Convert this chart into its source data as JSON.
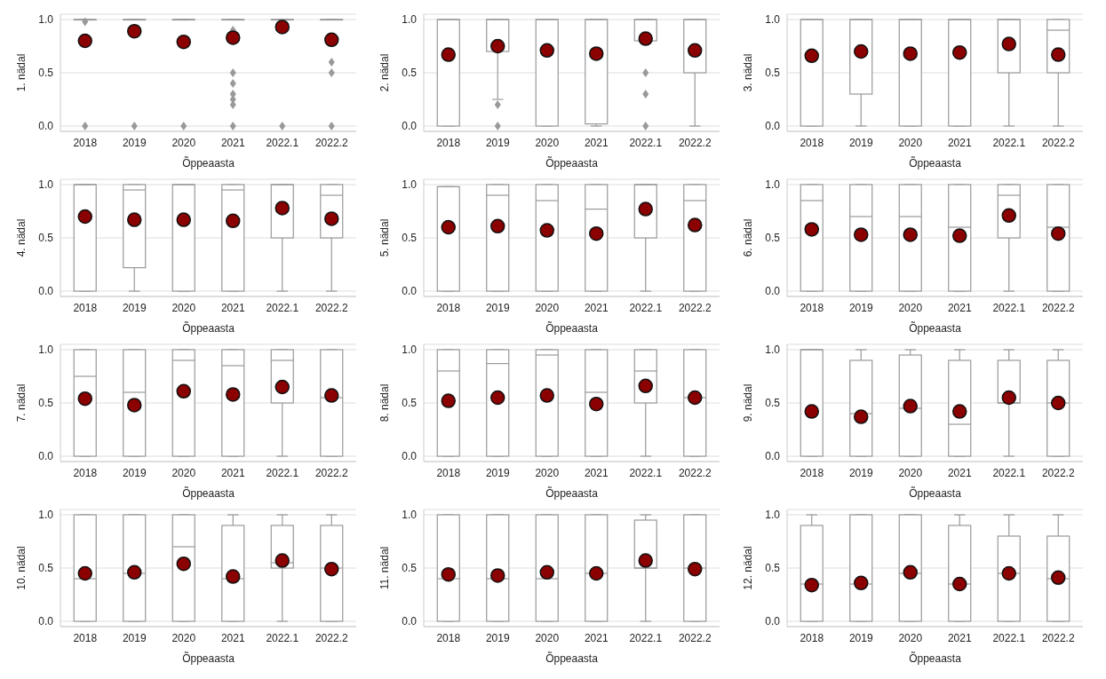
{
  "chart_data": [
    {
      "type": "box",
      "ylabel": "1. nädal",
      "xlabel": "Õppeaasta",
      "categories": [
        "2018",
        "2019",
        "2020",
        "2021",
        "2022.1",
        "2022.2"
      ],
      "ylim": [
        -0.05,
        1.05
      ],
      "yticks": [
        {
          "value": 0,
          "label": "0.0"
        },
        {
          "value": 0.5,
          "label": "0.5"
        },
        {
          "value": 1,
          "label": "1.0"
        }
      ],
      "grid": "y",
      "boxes": [
        {
          "low": 1,
          "q1": 1,
          "median": 1,
          "q3": 1,
          "high": 1,
          "mean": 0.8,
          "outliers": [
            0,
            0.98
          ]
        },
        {
          "low": 1,
          "q1": 1,
          "median": 1,
          "q3": 1,
          "high": 1,
          "mean": 0.89,
          "outliers": [
            0
          ]
        },
        {
          "low": 1,
          "q1": 1,
          "median": 1,
          "q3": 1,
          "high": 1,
          "mean": 0.79,
          "outliers": [
            0
          ]
        },
        {
          "low": 1,
          "q1": 1,
          "median": 1,
          "q3": 1,
          "high": 1,
          "mean": 0.83,
          "outliers": [
            0,
            0.2,
            0.25,
            0.3,
            0.4,
            0.5,
            0.8,
            0.9
          ]
        },
        {
          "low": 1,
          "q1": 1,
          "median": 1,
          "q3": 1,
          "high": 1,
          "mean": 0.93,
          "outliers": [
            0
          ]
        },
        {
          "low": 1,
          "q1": 1,
          "median": 1,
          "q3": 1,
          "high": 1,
          "mean": 0.81,
          "outliers": [
            0,
            0.5,
            0.6
          ]
        }
      ]
    },
    {
      "type": "box",
      "ylabel": "2. nädal",
      "xlabel": "Õppeaasta",
      "categories": [
        "2018",
        "2019",
        "2020",
        "2021",
        "2022.1",
        "2022.2"
      ],
      "ylim": [
        -0.05,
        1.05
      ],
      "yticks": [
        {
          "value": 0,
          "label": "0.0"
        },
        {
          "value": 0.5,
          "label": "0.5"
        },
        {
          "value": 1,
          "label": "1.0"
        }
      ],
      "grid": "y",
      "boxes": [
        {
          "low": 0,
          "q1": 0,
          "median": 1,
          "q3": 1,
          "high": 1,
          "mean": 0.67
        },
        {
          "low": 0.25,
          "q1": 0.7,
          "median": 1,
          "q3": 1,
          "high": 1,
          "mean": 0.75,
          "outliers": [
            0,
            0.2
          ]
        },
        {
          "low": 0,
          "q1": 0,
          "median": 1,
          "q3": 1,
          "high": 1,
          "mean": 0.71
        },
        {
          "low": 0,
          "q1": 0.02,
          "median": 1,
          "q3": 1,
          "high": 1,
          "mean": 0.68
        },
        {
          "low": 0.8,
          "q1": 0.8,
          "median": 1,
          "q3": 1,
          "high": 1,
          "mean": 0.82,
          "outliers": [
            0,
            0.3,
            0.5
          ]
        },
        {
          "low": 0,
          "q1": 0.5,
          "median": 1,
          "q3": 1,
          "high": 1,
          "mean": 0.71
        }
      ]
    },
    {
      "type": "box",
      "ylabel": "3. nädal",
      "xlabel": "Õppeaasta",
      "categories": [
        "2018",
        "2019",
        "2020",
        "2021",
        "2022.1",
        "2022.2"
      ],
      "ylim": [
        -0.05,
        1.05
      ],
      "yticks": [
        {
          "value": 0,
          "label": "0.0"
        },
        {
          "value": 0.5,
          "label": "0.5"
        },
        {
          "value": 1,
          "label": "1.0"
        }
      ],
      "grid": "y",
      "boxes": [
        {
          "low": 0,
          "q1": 0,
          "median": 1,
          "q3": 1,
          "high": 1,
          "mean": 0.66
        },
        {
          "low": 0,
          "q1": 0.3,
          "median": 1,
          "q3": 1,
          "high": 1,
          "mean": 0.7
        },
        {
          "low": 0,
          "q1": 0,
          "median": 1,
          "q3": 1,
          "high": 1,
          "mean": 0.68
        },
        {
          "low": 0,
          "q1": 0,
          "median": 1,
          "q3": 1,
          "high": 1,
          "mean": 0.69
        },
        {
          "low": 0,
          "q1": 0.5,
          "median": 1,
          "q3": 1,
          "high": 1,
          "mean": 0.77
        },
        {
          "low": 0,
          "q1": 0.5,
          "median": 0.9,
          "q3": 1,
          "high": 1,
          "mean": 0.67
        }
      ]
    },
    {
      "type": "box",
      "ylabel": "4. nädal",
      "xlabel": "Õppeaasta",
      "categories": [
        "2018",
        "2019",
        "2020",
        "2021",
        "2022.1",
        "2022.2"
      ],
      "ylim": [
        -0.05,
        1.05
      ],
      "yticks": [
        {
          "value": 0,
          "label": "0.0"
        },
        {
          "value": 0.5,
          "label": "0.5"
        },
        {
          "value": 1,
          "label": "1.0"
        }
      ],
      "grid": "y",
      "boxes": [
        {
          "low": 0,
          "q1": 0,
          "median": 1,
          "q3": 1,
          "high": 1,
          "mean": 0.7
        },
        {
          "low": 0,
          "q1": 0.22,
          "median": 0.95,
          "q3": 1,
          "high": 1,
          "mean": 0.67
        },
        {
          "low": 0,
          "q1": 0,
          "median": 1,
          "q3": 1,
          "high": 1,
          "mean": 0.67
        },
        {
          "low": 0,
          "q1": 0,
          "median": 0.95,
          "q3": 1,
          "high": 1,
          "mean": 0.66
        },
        {
          "low": 0,
          "q1": 0.5,
          "median": 1,
          "q3": 1,
          "high": 1,
          "mean": 0.78
        },
        {
          "low": 0,
          "q1": 0.5,
          "median": 0.9,
          "q3": 1,
          "high": 1,
          "mean": 0.68
        }
      ]
    },
    {
      "type": "box",
      "ylabel": "5. nädal",
      "xlabel": "Õppeaasta",
      "categories": [
        "2018",
        "2019",
        "2020",
        "2021",
        "2022.1",
        "2022.2"
      ],
      "ylim": [
        -0.05,
        1.05
      ],
      "yticks": [
        {
          "value": 0,
          "label": "0.0"
        },
        {
          "value": 0.5,
          "label": "0.5"
        },
        {
          "value": 1,
          "label": "1.0"
        }
      ],
      "grid": "y",
      "boxes": [
        {
          "low": 0,
          "q1": 0,
          "median": 0.98,
          "q3": 0.98,
          "high": 0.98,
          "mean": 0.6
        },
        {
          "low": 0,
          "q1": 0,
          "median": 0.9,
          "q3": 1,
          "high": 1,
          "mean": 0.61
        },
        {
          "low": 0,
          "q1": 0,
          "median": 0.85,
          "q3": 1,
          "high": 1,
          "mean": 0.57
        },
        {
          "low": 0,
          "q1": 0,
          "median": 0.77,
          "q3": 1,
          "high": 1,
          "mean": 0.54
        },
        {
          "low": 0,
          "q1": 0.5,
          "median": 1,
          "q3": 1,
          "high": 1,
          "mean": 0.77
        },
        {
          "low": 0,
          "q1": 0,
          "median": 0.85,
          "q3": 1,
          "high": 1,
          "mean": 0.62
        }
      ]
    },
    {
      "type": "box",
      "ylabel": "6. nädal",
      "xlabel": "Õppeaasta",
      "categories": [
        "2018",
        "2019",
        "2020",
        "2021",
        "2022.1",
        "2022.2"
      ],
      "ylim": [
        -0.05,
        1.05
      ],
      "yticks": [
        {
          "value": 0,
          "label": "0.0"
        },
        {
          "value": 0.5,
          "label": "0.5"
        },
        {
          "value": 1,
          "label": "1.0"
        }
      ],
      "grid": "y",
      "boxes": [
        {
          "low": 0,
          "q1": 0,
          "median": 0.85,
          "q3": 1,
          "high": 1,
          "mean": 0.58
        },
        {
          "low": 0,
          "q1": 0,
          "median": 0.7,
          "q3": 1,
          "high": 1,
          "mean": 0.53
        },
        {
          "low": 0,
          "q1": 0,
          "median": 0.7,
          "q3": 1,
          "high": 1,
          "mean": 0.53
        },
        {
          "low": 0,
          "q1": 0,
          "median": 0.6,
          "q3": 1,
          "high": 1,
          "mean": 0.52
        },
        {
          "low": 0,
          "q1": 0.5,
          "median": 0.9,
          "q3": 1,
          "high": 1,
          "mean": 0.71
        },
        {
          "low": 0,
          "q1": 0,
          "median": 0.6,
          "q3": 1,
          "high": 1,
          "mean": 0.54
        }
      ]
    },
    {
      "type": "box",
      "ylabel": "7. nädal",
      "xlabel": "Õppeaasta",
      "categories": [
        "2018",
        "2019",
        "2020",
        "2021",
        "2022.1",
        "2022.2"
      ],
      "ylim": [
        -0.05,
        1.05
      ],
      "yticks": [
        {
          "value": 0,
          "label": "0.0"
        },
        {
          "value": 0.5,
          "label": "0.5"
        },
        {
          "value": 1,
          "label": "1.0"
        }
      ],
      "grid": "y",
      "boxes": [
        {
          "low": 0,
          "q1": 0,
          "median": 0.75,
          "q3": 1,
          "high": 1,
          "mean": 0.54
        },
        {
          "low": 0,
          "q1": 0,
          "median": 0.6,
          "q3": 1,
          "high": 1,
          "mean": 0.48
        },
        {
          "low": 0,
          "q1": 0,
          "median": 0.9,
          "q3": 1,
          "high": 1,
          "mean": 0.61
        },
        {
          "low": 0,
          "q1": 0,
          "median": 0.85,
          "q3": 1,
          "high": 1,
          "mean": 0.58
        },
        {
          "low": 0,
          "q1": 0.5,
          "median": 0.9,
          "q3": 1,
          "high": 1,
          "mean": 0.65
        },
        {
          "low": 0,
          "q1": 0,
          "median": 0.55,
          "q3": 1,
          "high": 1,
          "mean": 0.57
        }
      ]
    },
    {
      "type": "box",
      "ylabel": "8. nädal",
      "xlabel": "Õppeaasta",
      "categories": [
        "2018",
        "2019",
        "2020",
        "2021",
        "2022.1",
        "2022.2"
      ],
      "ylim": [
        -0.05,
        1.05
      ],
      "yticks": [
        {
          "value": 0,
          "label": "0.0"
        },
        {
          "value": 0.5,
          "label": "0.5"
        },
        {
          "value": 1,
          "label": "1.0"
        }
      ],
      "grid": "y",
      "boxes": [
        {
          "low": 0,
          "q1": 0,
          "median": 0.8,
          "q3": 1,
          "high": 1,
          "mean": 0.52
        },
        {
          "low": 0,
          "q1": 0,
          "median": 0.87,
          "q3": 1,
          "high": 1,
          "mean": 0.55
        },
        {
          "low": 0,
          "q1": 0,
          "median": 0.95,
          "q3": 1,
          "high": 1,
          "mean": 0.57
        },
        {
          "low": 0,
          "q1": 0,
          "median": 0.6,
          "q3": 1,
          "high": 1,
          "mean": 0.49
        },
        {
          "low": 0,
          "q1": 0.5,
          "median": 0.8,
          "q3": 1,
          "high": 1,
          "mean": 0.66
        },
        {
          "low": 0,
          "q1": 0,
          "median": 0.55,
          "q3": 1,
          "high": 1,
          "mean": 0.55
        }
      ]
    },
    {
      "type": "box",
      "ylabel": "9. nädal",
      "xlabel": "Õppeaasta",
      "categories": [
        "2018",
        "2019",
        "2020",
        "2021",
        "2022.1",
        "2022.2"
      ],
      "ylim": [
        -0.05,
        1.05
      ],
      "yticks": [
        {
          "value": 0,
          "label": "0.0"
        },
        {
          "value": 0.5,
          "label": "0.5"
        },
        {
          "value": 1,
          "label": "1.0"
        }
      ],
      "grid": "y",
      "boxes": [
        {
          "low": 0,
          "q1": 0,
          "median": 1,
          "q3": 1,
          "high": 1,
          "mean": 0.42
        },
        {
          "low": 0,
          "q1": 0,
          "median": 0.4,
          "q3": 0.9,
          "high": 1,
          "mean": 0.37
        },
        {
          "low": 0,
          "q1": 0,
          "median": 0.45,
          "q3": 0.95,
          "high": 1,
          "mean": 0.47
        },
        {
          "low": 0,
          "q1": 0,
          "median": 0.3,
          "q3": 0.9,
          "high": 1,
          "mean": 0.42
        },
        {
          "low": 0,
          "q1": 0.5,
          "median": 0.5,
          "q3": 0.9,
          "high": 1,
          "mean": 0.55
        },
        {
          "low": 0,
          "q1": 0,
          "median": 0.5,
          "q3": 0.9,
          "high": 1,
          "mean": 0.5
        }
      ]
    },
    {
      "type": "box",
      "ylabel": "10. nädal",
      "xlabel": "Õppeaasta",
      "categories": [
        "2018",
        "2019",
        "2020",
        "2021",
        "2022.1",
        "2022.2"
      ],
      "ylim": [
        -0.05,
        1.05
      ],
      "yticks": [
        {
          "value": 0,
          "label": "0.0"
        },
        {
          "value": 0.5,
          "label": "0.5"
        },
        {
          "value": 1,
          "label": "1.0"
        }
      ],
      "grid": "y",
      "boxes": [
        {
          "low": 0,
          "q1": 0,
          "median": 0.4,
          "q3": 1,
          "high": 1,
          "mean": 0.45
        },
        {
          "low": 0,
          "q1": 0,
          "median": 0.45,
          "q3": 1,
          "high": 1,
          "mean": 0.46
        },
        {
          "low": 0,
          "q1": 0,
          "median": 0.7,
          "q3": 1,
          "high": 1,
          "mean": 0.54
        },
        {
          "low": 0,
          "q1": 0,
          "median": 0.4,
          "q3": 0.9,
          "high": 1,
          "mean": 0.42
        },
        {
          "low": 0,
          "q1": 0.5,
          "median": 0.55,
          "q3": 0.9,
          "high": 1,
          "mean": 0.57
        },
        {
          "low": 0,
          "q1": 0,
          "median": 0.5,
          "q3": 0.9,
          "high": 1,
          "mean": 0.49
        }
      ]
    },
    {
      "type": "box",
      "ylabel": "11. nädal",
      "xlabel": "Õppeaasta",
      "categories": [
        "2018",
        "2019",
        "2020",
        "2021",
        "2022.1",
        "2022.2"
      ],
      "ylim": [
        -0.05,
        1.05
      ],
      "yticks": [
        {
          "value": 0,
          "label": "0.0"
        },
        {
          "value": 0.5,
          "label": "0.5"
        },
        {
          "value": 1,
          "label": "1.0"
        }
      ],
      "grid": "y",
      "boxes": [
        {
          "low": 0,
          "q1": 0,
          "median": 0.4,
          "q3": 1,
          "high": 1,
          "mean": 0.44
        },
        {
          "low": 0,
          "q1": 0,
          "median": 0.4,
          "q3": 1,
          "high": 1,
          "mean": 0.43
        },
        {
          "low": 0,
          "q1": 0,
          "median": 0.4,
          "q3": 1,
          "high": 1,
          "mean": 0.46
        },
        {
          "low": 0,
          "q1": 0,
          "median": 0.45,
          "q3": 1,
          "high": 1,
          "mean": 0.45
        },
        {
          "low": 0,
          "q1": 0.5,
          "median": 0.5,
          "q3": 0.95,
          "high": 1,
          "mean": 0.57
        },
        {
          "low": 0,
          "q1": 0,
          "median": 0.5,
          "q3": 1,
          "high": 1,
          "mean": 0.49
        }
      ]
    },
    {
      "type": "box",
      "ylabel": "12. nädal",
      "xlabel": "Õppeaasta",
      "categories": [
        "2018",
        "2019",
        "2020",
        "2021",
        "2022.1",
        "2022.2"
      ],
      "ylim": [
        -0.05,
        1.05
      ],
      "yticks": [
        {
          "value": 0,
          "label": "0.0"
        },
        {
          "value": 0.5,
          "label": "0.5"
        },
        {
          "value": 1,
          "label": "1.0"
        }
      ],
      "grid": "y",
      "boxes": [
        {
          "low": 0,
          "q1": 0,
          "median": 0.35,
          "q3": 0.9,
          "high": 1,
          "mean": 0.34
        },
        {
          "low": 0,
          "q1": 0,
          "median": 0.35,
          "q3": 1,
          "high": 1,
          "mean": 0.36
        },
        {
          "low": 0,
          "q1": 0,
          "median": 0.45,
          "q3": 1,
          "high": 1,
          "mean": 0.46
        },
        {
          "low": 0,
          "q1": 0,
          "median": 0.35,
          "q3": 0.9,
          "high": 1,
          "mean": 0.35
        },
        {
          "low": 0,
          "q1": 0,
          "median": 0.45,
          "q3": 0.8,
          "high": 1,
          "mean": 0.45
        },
        {
          "low": 0,
          "q1": 0,
          "median": 0.4,
          "q3": 0.8,
          "high": 1,
          "mean": 0.41
        }
      ]
    }
  ]
}
